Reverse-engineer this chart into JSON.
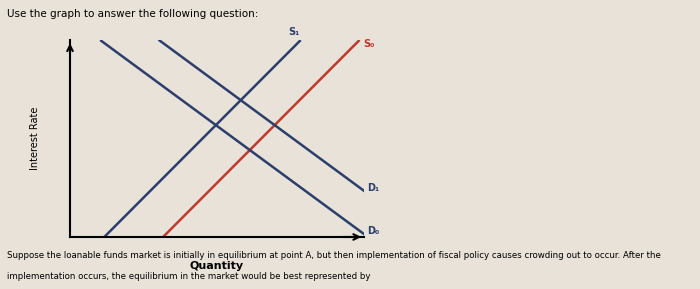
{
  "title": "Use the graph to answer the following question:",
  "ylabel": "Interest Rate",
  "xlabel": "Quantity",
  "caption_line1": "Suppose the loanable funds market is initially in equilibrium at point A, but then implementation of fiscal policy causes crowding out to occur. After the",
  "caption_line2": "implementation occurs, the equilibrium in the market would be best represented by",
  "bg_color": "#e8e2d8",
  "plot_bg_color": "#e8e2d8",
  "right_bg_color": "#ede8df",
  "supply0_color": "#c0392b",
  "supply1_color": "#2c3e6b",
  "demand_color": "#2c3e6b",
  "point_color_A": "#c0392b",
  "point_color_BCD": "#1a1a1a",
  "S0_label": "S₀",
  "S1_label": "S₁",
  "D0_label": "D₀",
  "D1_label": "D₁",
  "xlim": [
    0,
    10
  ],
  "ylim": [
    0,
    10
  ],
  "s0_slope": 1.5,
  "s0_x0": 3.5,
  "s0_y0": 0.5,
  "s1_slope": 1.5,
  "s1_x0": 1.5,
  "s1_y0": 0.5,
  "d0_slope": -1.1,
  "d0_x0": 1.5,
  "d0_y0": 9.5,
  "d1_slope": -1.1,
  "d1_x0": 3.5,
  "d1_y0": 9.5
}
